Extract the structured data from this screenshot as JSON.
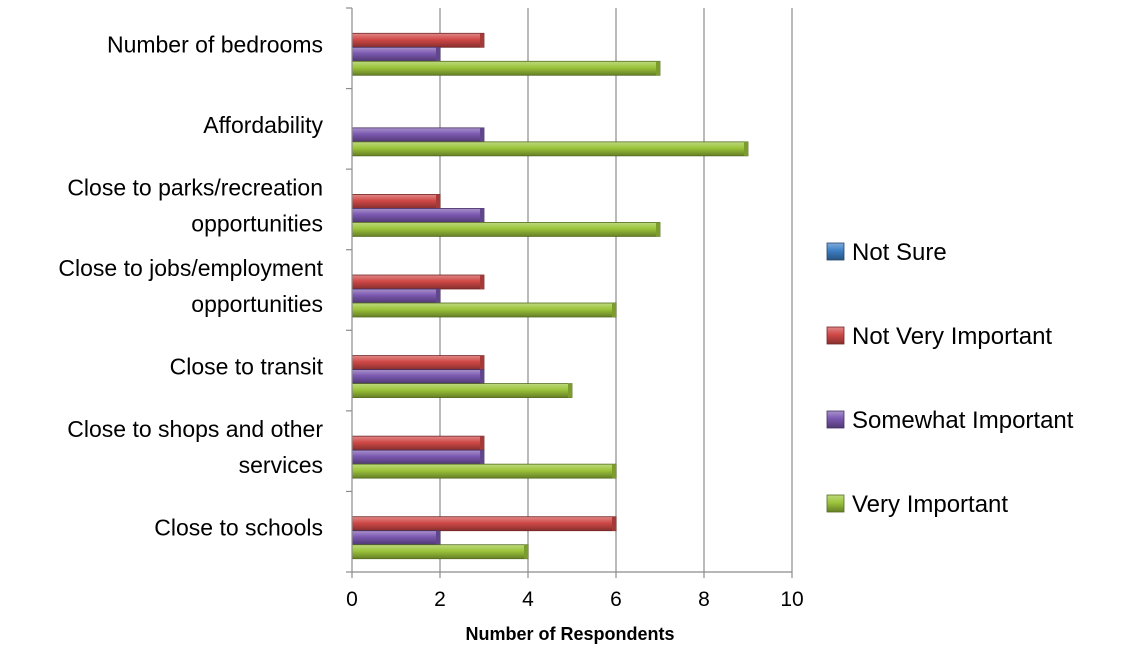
{
  "chart_data": {
    "type": "bar",
    "orientation": "horizontal",
    "title": "",
    "xlabel": "Number of Respondents",
    "ylabel": "",
    "xlim": [
      0,
      10
    ],
    "xticks": [
      0,
      2,
      4,
      6,
      8,
      10
    ],
    "grid": "vertical",
    "legend_position": "right",
    "categories": [
      "Number of bedrooms",
      "Affordability",
      "Close to parks/recreation opportunities",
      "Close to jobs/employment opportunities",
      "Close to transit",
      "Close to shops and other services",
      "Close to schools"
    ],
    "category_lines": [
      [
        "Number of bedrooms"
      ],
      [
        "Affordability"
      ],
      [
        "Close to parks/recreation",
        "opportunities"
      ],
      [
        "Close to jobs/employment",
        "opportunities"
      ],
      [
        "Close to transit"
      ],
      [
        "Close to shops and other",
        "services"
      ],
      [
        "Close to schools"
      ]
    ],
    "series": [
      {
        "name": "Not Sure",
        "color": "#3d7fc4",
        "values": [
          0,
          0,
          0,
          0,
          0,
          0,
          0
        ]
      },
      {
        "name": "Not Very Important",
        "color": "#cf4846",
        "values": [
          3,
          0,
          2,
          3,
          3,
          3,
          6
        ]
      },
      {
        "name": "Somewhat Important",
        "color": "#7b58b0",
        "values": [
          2,
          3,
          3,
          2,
          3,
          3,
          2
        ]
      },
      {
        "name": "Very Important",
        "color": "#9bc43a",
        "values": [
          7,
          9,
          7,
          6,
          5,
          6,
          4
        ]
      }
    ]
  }
}
